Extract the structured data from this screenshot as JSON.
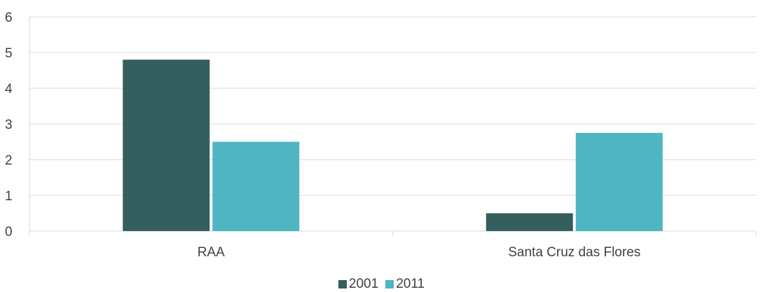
{
  "chart_data": {
    "type": "bar",
    "categories": [
      "RAA",
      "Santa Cruz das Flores"
    ],
    "series": [
      {
        "name": "2001",
        "color": "#355F5E",
        "values": [
          4.8,
          0.5
        ]
      },
      {
        "name": "2011",
        "color": "#4EB5C1",
        "values": [
          2.5,
          2.75
        ]
      }
    ],
    "y_ticks": [
      "0",
      "1",
      "2",
      "3",
      "4",
      "5",
      "6"
    ],
    "ylim": [
      0,
      6
    ],
    "grid": true,
    "legend_position": "bottom",
    "title": "",
    "xlabel": "",
    "ylabel": ""
  },
  "legend": {
    "items": [
      {
        "label": "2001",
        "color": "#355F5E"
      },
      {
        "label": "2011",
        "color": "#4EB5C1"
      }
    ]
  }
}
